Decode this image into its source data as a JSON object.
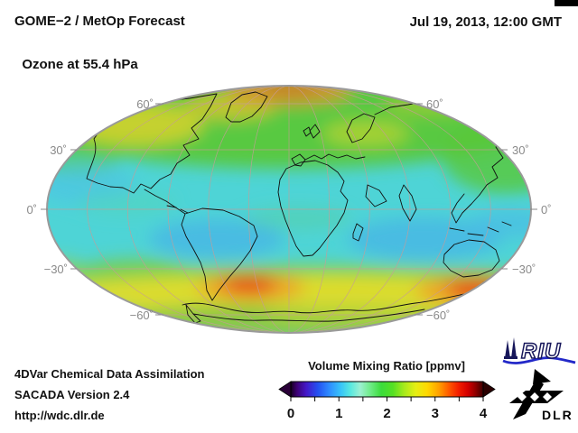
{
  "header": {
    "title_line1": "GOME−2 / MetOp Forecast",
    "title_line2": "Ozone at 55.4 hPa",
    "datetime": "Jul 19, 2013, 12:00 GMT"
  },
  "map": {
    "projection": "mollweide-ellipse",
    "lat_labels_left": [
      "60˚",
      "30˚",
      "0˚",
      "−30˚",
      "−60˚"
    ],
    "lat_labels_right": [
      "60˚",
      "30˚",
      "0˚",
      "−30˚",
      "−60˚"
    ]
  },
  "footer": {
    "line1": "4DVar Chemical Data Assimilation",
    "line2": "SACADA Version 2.4",
    "line3": "http://wdc.dlr.de"
  },
  "colorbar": {
    "title": "Volume Mixing Ratio [ppmv]",
    "tick_labels": [
      "0",
      "1",
      "2",
      "3",
      "4"
    ],
    "range": [
      0,
      4
    ],
    "minor_tick_count": 9,
    "arrow_left_color": "#2a0038",
    "arrow_right_color": "#2a0000",
    "gradient_stops": [
      [
        "0%",
        "#14001e"
      ],
      [
        "3%",
        "#3c0070"
      ],
      [
        "8%",
        "#4418c8"
      ],
      [
        "14%",
        "#2450f0"
      ],
      [
        "20%",
        "#2e8cff"
      ],
      [
        "26%",
        "#38c4f8"
      ],
      [
        "31%",
        "#58e8e0"
      ],
      [
        "36%",
        "#9cf0d2"
      ],
      [
        "41%",
        "#72ec8c"
      ],
      [
        "47%",
        "#3cdc3c"
      ],
      [
        "53%",
        "#54e024"
      ],
      [
        "59%",
        "#a8ea1c"
      ],
      [
        "65%",
        "#e6ee14"
      ],
      [
        "71%",
        "#ffd800"
      ],
      [
        "77%",
        "#ffa000"
      ],
      [
        "82%",
        "#ff5c00"
      ],
      [
        "87%",
        "#f42000"
      ],
      [
        "92%",
        "#d40000"
      ],
      [
        "96%",
        "#900000"
      ],
      [
        "100%",
        "#3c0000"
      ]
    ]
  },
  "logos": {
    "riu_text": "RIU",
    "riu_navy": "#16165a",
    "riu_blue": "#2228c8",
    "dlr_text": "DLR",
    "dlr_black": "#000000"
  }
}
